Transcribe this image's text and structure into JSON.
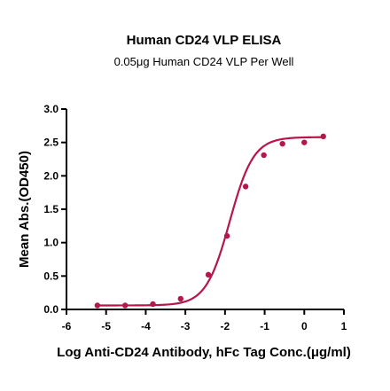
{
  "chart_data": {
    "type": "scatter",
    "title": "Human CD24 VLP ELISA",
    "subtitle": "0.05μg Human CD24 VLP Per Well",
    "xlabel": "Log Anti-CD24 Antibody, hFc Tag Conc.(μg/ml)",
    "ylabel": "Mean Abs.(OD450)",
    "xlim": [
      -6,
      1
    ],
    "ylim": [
      0,
      3.0
    ],
    "x_ticks": [
      "-6",
      "-5",
      "-4",
      "-3",
      "-2",
      "-1",
      "0",
      "1"
    ],
    "y_ticks": [
      "0.0",
      "0.5",
      "1.0",
      "1.5",
      "2.0",
      "2.5",
      "3.0"
    ],
    "grid": false,
    "series": [
      {
        "color": "#b5174b",
        "x": [
          -5.22,
          -4.52,
          -3.82,
          -3.12,
          -2.42,
          -1.95,
          -1.48,
          -1.02,
          -0.55,
          0.0,
          0.48
        ],
        "y": [
          0.06,
          0.06,
          0.08,
          0.16,
          0.52,
          1.1,
          1.84,
          2.31,
          2.48,
          2.5,
          2.59
        ]
      }
    ],
    "fit": {
      "type": "4PL",
      "bottom": 0.06,
      "top": 2.58,
      "log_ec50": -1.88,
      "hill": 1.45,
      "color": "#b5174b"
    }
  }
}
